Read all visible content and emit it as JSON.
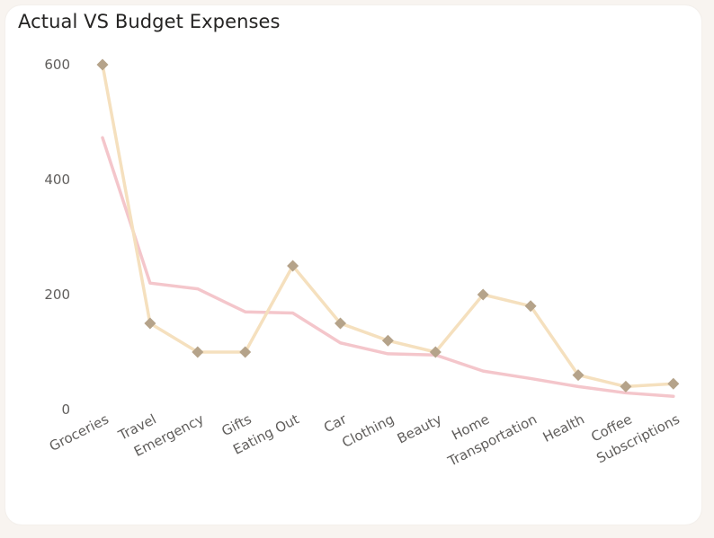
{
  "header": {
    "title": "Actual VS Budget Expenses"
  },
  "chart_data": {
    "type": "line",
    "title": "Actual VS Budget Expenses",
    "xlabel": "",
    "ylabel": "",
    "ylim": [
      0,
      600
    ],
    "yticks": [
      0,
      200,
      400,
      600
    ],
    "grid": false,
    "categories": [
      "Groceries",
      "Travel",
      "Emergency",
      "Gifts",
      "Eating Out",
      "Car",
      "Clothing",
      "Beauty",
      "Home",
      "Transportation",
      "Health",
      "Coffee",
      "Subscriptions"
    ],
    "series": [
      {
        "color": "#f5e0be",
        "marker_color": "#b5a38a",
        "marker": "diamond",
        "values": [
          600,
          150,
          100,
          100,
          250,
          150,
          120,
          100,
          200,
          180,
          60,
          40,
          45
        ]
      },
      {
        "color": "#f4c6cb",
        "marker": "none",
        "values": [
          473,
          220,
          210,
          170,
          168,
          116,
          97,
          95,
          67,
          54,
          40,
          29,
          23
        ]
      }
    ]
  }
}
